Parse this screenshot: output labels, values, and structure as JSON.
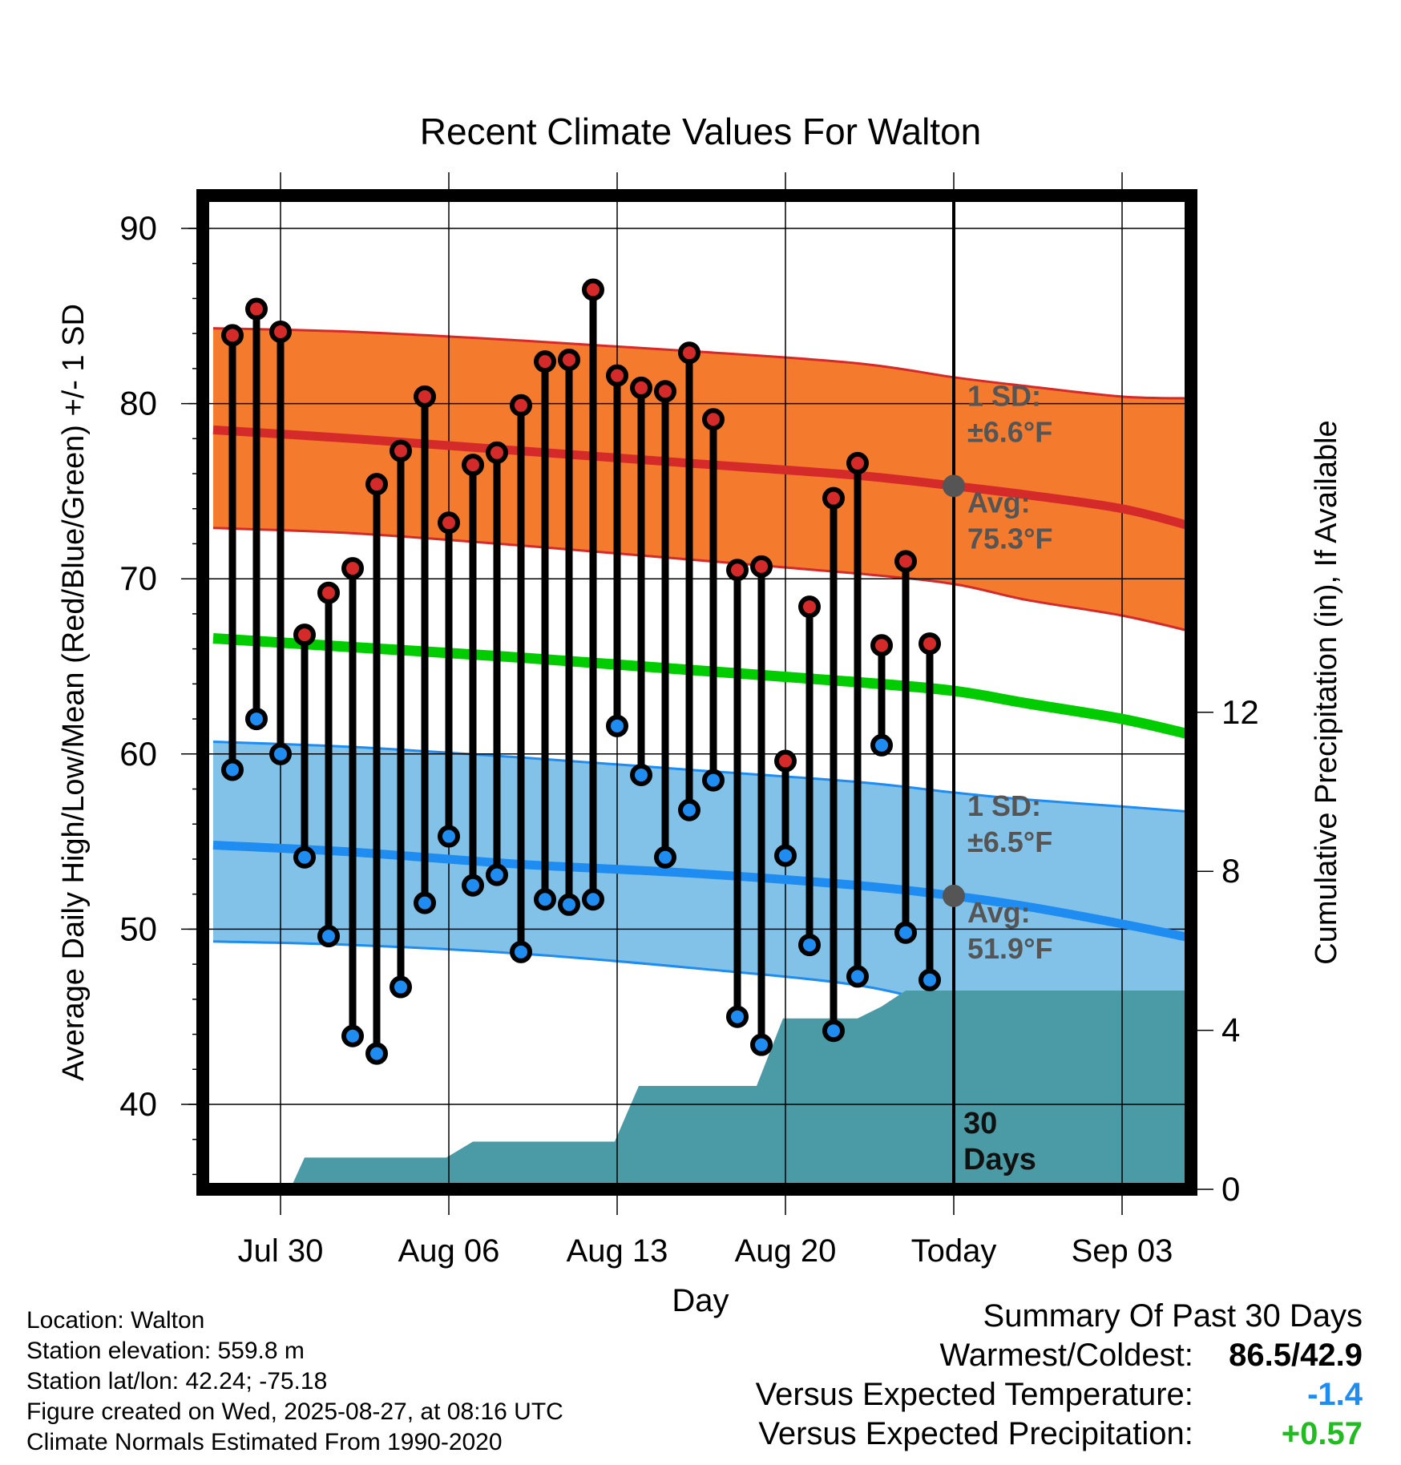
{
  "chart_data": {
    "type": "line",
    "title": "Recent Climate Values For Walton",
    "xlabel": "Day",
    "ylabel": "Average Daily High/Low/Mean (Red/Blue/Green) +/- 1 SD",
    "y2label": "Cumulative Precipitation (in), If Available",
    "ylim": [
      35,
      92
    ],
    "y2lim": [
      0,
      26
    ],
    "xlim": [
      -3.5,
      38.5
    ],
    "x_ticks": [
      {
        "day": 0,
        "label": "Jul 30"
      },
      {
        "day": 7,
        "label": "Aug 06"
      },
      {
        "day": 14,
        "label": "Aug 13"
      },
      {
        "day": 21,
        "label": "Aug 20"
      },
      {
        "day": 28,
        "label": "Today"
      },
      {
        "day": 35,
        "label": "Sep 03"
      }
    ],
    "y_ticks": [
      40,
      50,
      60,
      70,
      80,
      90
    ],
    "y2_ticks": [
      0,
      4,
      8,
      12
    ],
    "grid": true,
    "today_day": 28,
    "today_label": "30\nDays",
    "high_normal": {
      "x": [
        -2.8,
        3,
        10,
        17,
        24,
        28,
        31,
        35,
        38.5
      ],
      "avg": [
        78.5,
        78.0,
        77.3,
        76.6,
        75.9,
        75.3,
        74.8,
        74.0,
        73.0
      ],
      "upper": [
        84.3,
        84.1,
        83.6,
        83.0,
        82.3,
        81.5,
        81.0,
        80.4,
        80.3
      ],
      "lower": [
        72.9,
        72.6,
        71.9,
        71.1,
        70.3,
        69.7,
        68.8,
        67.9,
        67.0
      ],
      "sd_label": "1 SD:",
      "sd_value": "±6.6°F",
      "avg_label": "Avg:",
      "avg_value": "75.3°F",
      "color": "#f47a2e",
      "line_color": "#d42a2a"
    },
    "low_normal": {
      "x": [
        -2.8,
        3,
        10,
        17,
        24,
        28,
        31,
        35,
        38.5
      ],
      "avg": [
        54.8,
        54.4,
        53.7,
        53.2,
        52.5,
        51.9,
        51.3,
        50.3,
        49.5
      ],
      "upper": [
        60.7,
        60.4,
        59.8,
        59.1,
        58.4,
        57.8,
        57.4,
        57.0,
        56.7
      ],
      "lower": [
        49.3,
        49.1,
        48.6,
        47.8,
        46.8,
        45.5,
        44.5,
        43.2,
        42.3
      ],
      "sd_label": "1 SD:",
      "sd_value": "±6.5°F",
      "avg_label": "Avg:",
      "avg_value": "51.9°F",
      "color": "#82c2e8",
      "line_color": "#1e8cf0"
    },
    "mean_normal": {
      "x": [
        -2.8,
        3,
        10,
        17,
        24,
        28,
        31,
        35,
        38.5
      ],
      "values": [
        66.6,
        66.1,
        65.5,
        64.8,
        64.1,
        63.6,
        62.9,
        62.0,
        61.1
      ],
      "color": "#00cc00"
    },
    "series": [
      {
        "name": "Daily High",
        "color": "#d42a2a",
        "x": [
          -2,
          -1,
          0,
          1,
          2,
          3,
          4,
          5,
          6,
          7,
          8,
          9,
          10,
          11,
          12,
          13,
          14,
          15,
          16,
          17,
          18,
          19,
          20,
          21,
          22,
          23,
          24,
          25,
          26,
          27
        ],
        "values": [
          83.9,
          85.4,
          84.1,
          66.8,
          69.2,
          70.6,
          75.4,
          77.3,
          80.4,
          73.2,
          76.5,
          77.2,
          79.9,
          82.4,
          82.5,
          86.5,
          81.6,
          80.9,
          80.7,
          82.9,
          79.1,
          70.5,
          70.7,
          59.6,
          68.4,
          74.6,
          76.6,
          66.2,
          71.0,
          66.3
        ]
      },
      {
        "name": "Daily Low",
        "color": "#1e8cf0",
        "x": [
          -2,
          -1,
          0,
          1,
          2,
          3,
          4,
          5,
          6,
          7,
          8,
          9,
          10,
          11,
          12,
          13,
          14,
          15,
          16,
          17,
          18,
          19,
          20,
          21,
          22,
          23,
          24,
          25,
          26,
          27
        ],
        "values": [
          59.1,
          62.0,
          60.0,
          54.1,
          49.6,
          43.9,
          42.9,
          46.7,
          51.5,
          55.3,
          52.5,
          53.1,
          48.7,
          51.7,
          51.4,
          51.7,
          61.6,
          58.8,
          54.1,
          56.8,
          58.5,
          45.0,
          43.4,
          54.2,
          49.1,
          44.2,
          47.3,
          60.5,
          49.8,
          47.1
        ]
      }
    ],
    "precipitation": {
      "color": "#4a9ba5",
      "day": [
        -3.5,
        0.4,
        1,
        6.9,
        8,
        13.9,
        14.9,
        19.8,
        20.9,
        24,
        25,
        26,
        38.5
      ],
      "cumulative": [
        0,
        0,
        0.8,
        0.8,
        1.2,
        1.2,
        2.6,
        2.6,
        4.3,
        4.3,
        4.6,
        5.0,
        5.0
      ]
    }
  },
  "footer": {
    "location": "Location: Walton",
    "elevation": "Station elevation: 559.8 m",
    "latlon": "Station lat/lon: 42.24; -75.18",
    "created": "Figure created on Wed, 2025-08-27, at 08:16 UTC",
    "normals": "Climate Normals Estimated From 1990-2020"
  },
  "summary": {
    "title": "Summary Of Past 30 Days",
    "warm_cold_label": "Warmest/Coldest:",
    "warm_cold_value": "86.5/42.9",
    "temp_label": "Versus Expected Temperature:",
    "temp_value": "-1.4",
    "temp_color": "#1e8cf0",
    "precip_label": "Versus Expected Precipitation:",
    "precip_value": "+0.57",
    "precip_color": "#22bb22"
  }
}
